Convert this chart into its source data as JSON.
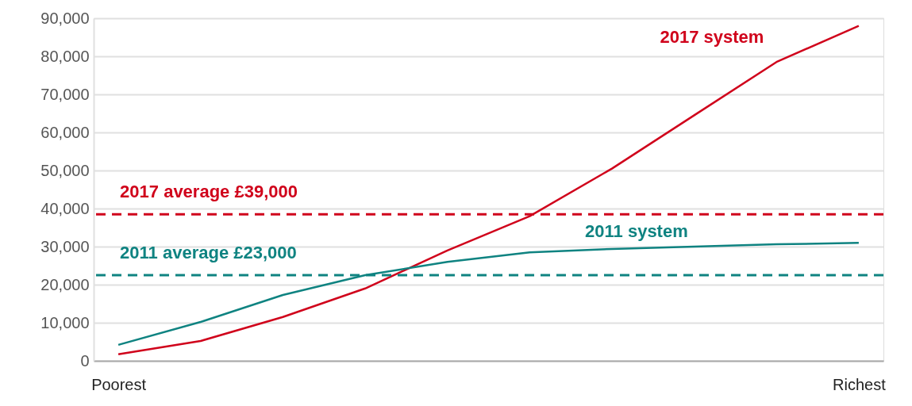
{
  "chart_data": {
    "type": "line",
    "categories": [
      "Poorest",
      null,
      null,
      null,
      null,
      null,
      null,
      null,
      null,
      "Richest"
    ],
    "series": [
      {
        "name": "2017 system",
        "color": "#d0021b",
        "values": [
          1700,
          5200,
          11500,
          19000,
          29000,
          38000,
          50500,
          64500,
          78500,
          88000
        ]
      },
      {
        "name": "2011 system",
        "color": "#0f8381",
        "values": [
          4200,
          10200,
          17300,
          22500,
          26000,
          28500,
          29400,
          30000,
          30600,
          31000
        ]
      }
    ],
    "ylim": [
      0,
      90000
    ],
    "yticks": [
      {
        "value": 0,
        "label": "0"
      },
      {
        "value": 10000,
        "label": "10,000"
      },
      {
        "value": 20000,
        "label": "20,000"
      },
      {
        "value": 30000,
        "label": "30,000"
      },
      {
        "value": 40000,
        "label": "40,000"
      },
      {
        "value": 50000,
        "label": "50,000"
      },
      {
        "value": 60000,
        "label": "60,000"
      },
      {
        "value": 70000,
        "label": "70,000"
      },
      {
        "value": 80000,
        "label": "80,000"
      },
      {
        "value": 90000,
        "label": "90,000"
      }
    ],
    "ref_lines": [
      {
        "axis": "y",
        "value": 38500,
        "label": "2017 average £39,000",
        "color": "#d0021b",
        "line_style": "dashed"
      },
      {
        "axis": "y",
        "value": 22500,
        "label": "2011 average £23,000",
        "color": "#0f8381",
        "line_style": "dashed"
      }
    ],
    "grid": "y",
    "legend": false,
    "marker": "none",
    "line_style": "solid"
  }
}
